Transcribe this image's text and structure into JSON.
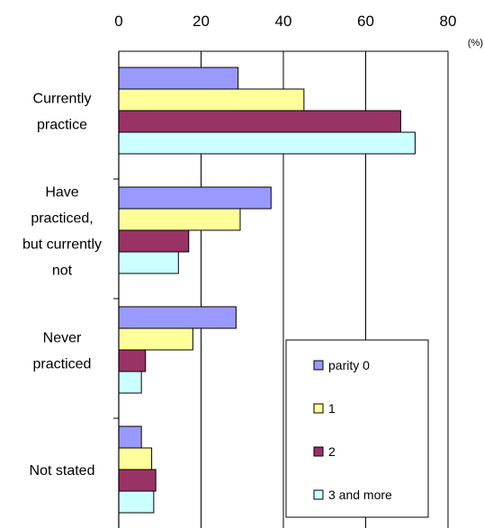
{
  "chart_data": {
    "type": "bar",
    "orientation": "horizontal",
    "xlim": [
      0,
      80
    ],
    "x_ticks": [
      "0",
      "20",
      "40",
      "60",
      "80"
    ],
    "unit": "(%)",
    "grid": "vertical",
    "legend_placement": "bottom-right",
    "categories": [
      [
        "Currently",
        "practice"
      ],
      [
        "Have",
        "practiced,",
        "but currently",
        "not"
      ],
      [
        "Never",
        "practiced"
      ],
      [
        "Not stated"
      ]
    ],
    "series": [
      {
        "name": "parity 0",
        "color": "#9999ff",
        "values": [
          29,
          37,
          28.5,
          5.5
        ]
      },
      {
        "name": "1",
        "color": "#ffff99",
        "values": [
          45,
          29.5,
          18,
          8
        ]
      },
      {
        "name": "2",
        "color": "#993366",
        "values": [
          68.5,
          17,
          6.5,
          9
        ]
      },
      {
        "name": "3 and more",
        "color": "#ccffff",
        "values": [
          72,
          14.5,
          5.5,
          8.5
        ]
      }
    ]
  }
}
